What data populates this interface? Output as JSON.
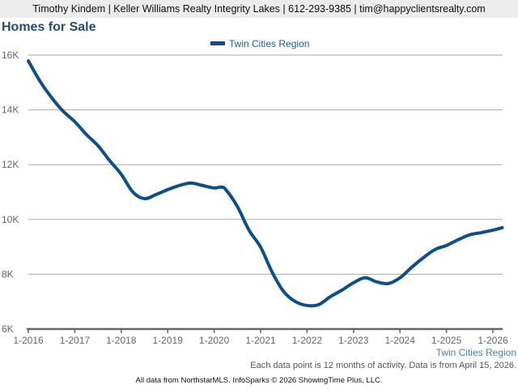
{
  "header": "Timothy Kindem | Keller Williams Realty Integrity Lakes | 612-293-9385 | tim@happyclientsrealty.com",
  "title": "Homes for Sale",
  "footnote": "Each data point is 12 months of activity. Data is from April 15, 2026.",
  "credit": "All data from NorthstarMLS. InfoSparks © 2026 ShowingTime Plus, LLC.",
  "chart_data": {
    "type": "line",
    "title": "Homes for Sale",
    "xlabel": "Twin Cities Region",
    "ylabel": "",
    "ylim": [
      6000,
      16000
    ],
    "xlim": [
      2016,
      2026.3
    ],
    "yticks": [
      {
        "v": 6000,
        "label": "6K"
      },
      {
        "v": 8000,
        "label": "8K"
      },
      {
        "v": 10000,
        "label": "10K"
      },
      {
        "v": 12000,
        "label": "12K"
      },
      {
        "v": 14000,
        "label": "14K"
      },
      {
        "v": 16000,
        "label": "16K"
      }
    ],
    "xticks": [
      {
        "v": 2016,
        "label": "1-2016"
      },
      {
        "v": 2017,
        "label": "1-2017"
      },
      {
        "v": 2018,
        "label": "1-2018"
      },
      {
        "v": 2019,
        "label": "1-2019"
      },
      {
        "v": 2020,
        "label": "1-2020"
      },
      {
        "v": 2021,
        "label": "1-2021"
      },
      {
        "v": 2022,
        "label": "1-2022"
      },
      {
        "v": 2023,
        "label": "1-2023"
      },
      {
        "v": 2024,
        "label": "1-2024"
      },
      {
        "v": 2025,
        "label": "1-2025"
      },
      {
        "v": 2026,
        "label": "1-2026"
      }
    ],
    "grid": true,
    "legend": "top-center",
    "color": "#0b4f8c",
    "series": [
      {
        "name": "Twin Cities Region",
        "x": [
          2016,
          2016.25,
          2016.5,
          2016.75,
          2017,
          2017.25,
          2017.5,
          2017.75,
          2018,
          2018.25,
          2018.5,
          2018.75,
          2019,
          2019.25,
          2019.5,
          2019.75,
          2020,
          2020.15,
          2020.25,
          2020.5,
          2020.75,
          2021,
          2021.25,
          2021.5,
          2021.75,
          2022,
          2022.25,
          2022.5,
          2022.75,
          2023,
          2023.25,
          2023.5,
          2023.75,
          2024,
          2024.25,
          2024.5,
          2024.75,
          2025,
          2025.25,
          2025.5,
          2025.75,
          2026,
          2026.2
        ],
        "values": [
          15790,
          15050,
          14450,
          13950,
          13570,
          13100,
          12690,
          12150,
          11650,
          11000,
          10760,
          10910,
          11090,
          11240,
          11330,
          11240,
          11150,
          11180,
          11090,
          10470,
          9610,
          8990,
          8070,
          7360,
          7000,
          6860,
          6890,
          7180,
          7420,
          7690,
          7870,
          7720,
          7660,
          7870,
          8250,
          8600,
          8900,
          9050,
          9260,
          9440,
          9520,
          9610,
          9700
        ]
      }
    ]
  }
}
